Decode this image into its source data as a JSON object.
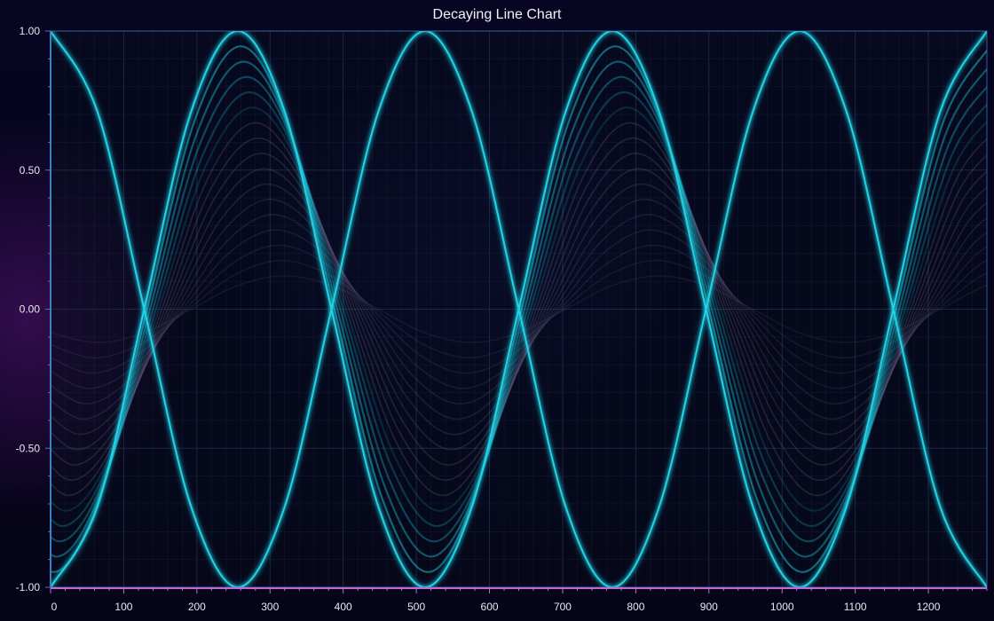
{
  "chart_data": {
    "type": "line",
    "title": "Decaying Line Chart",
    "xlabel": "",
    "ylabel": "",
    "xlim": [
      0,
      1280
    ],
    "ylim": [
      -1.0,
      1.0
    ],
    "x_ticks": [
      "0",
      "100",
      "200",
      "300",
      "400",
      "500",
      "600",
      "700",
      "800",
      "900",
      "1000",
      "1100",
      "1200"
    ],
    "y_ticks": [
      "1.00",
      "0.50",
      "0.00",
      "-0.50",
      "-1.00"
    ],
    "grid": true,
    "legend": "none",
    "series": [
      {
        "color": "#22d3e6",
        "x": [
          0,
          64,
          128,
          192,
          256,
          320,
          384,
          448,
          512,
          576,
          640,
          704,
          768,
          832,
          896,
          960,
          1024,
          1088,
          1152,
          1216,
          1280
        ],
        "y": [
          1.0,
          0.71,
          0.0,
          -0.71,
          -1.0,
          -0.71,
          0.0,
          0.71,
          1.0,
          0.71,
          0.0,
          -0.71,
          -1.0,
          -0.71,
          0.0,
          0.71,
          1.0,
          0.71,
          0.0,
          -0.71,
          -1.0
        ]
      },
      {
        "color": "#22d3e6",
        "x": [
          0,
          64,
          128,
          192,
          256,
          320,
          384,
          448,
          512,
          576,
          640,
          704,
          768,
          832,
          896,
          960,
          1024,
          1088,
          1152,
          1216,
          1280
        ],
        "y": [
          -1.0,
          -0.71,
          0.0,
          0.71,
          1.0,
          0.71,
          0.0,
          -0.71,
          -1.0,
          -0.71,
          0.0,
          0.71,
          1.0,
          0.71,
          0.0,
          -0.71,
          -1.0,
          -0.71,
          0.0,
          0.71,
          1.0
        ]
      }
    ],
    "decay_traces": 16,
    "colors": {
      "line": "#22d3e6",
      "ghost": "#8e7fa8",
      "grid": "#1d2b45",
      "axis": "#3f7fbf",
      "x_axis": "#c468d8"
    }
  }
}
